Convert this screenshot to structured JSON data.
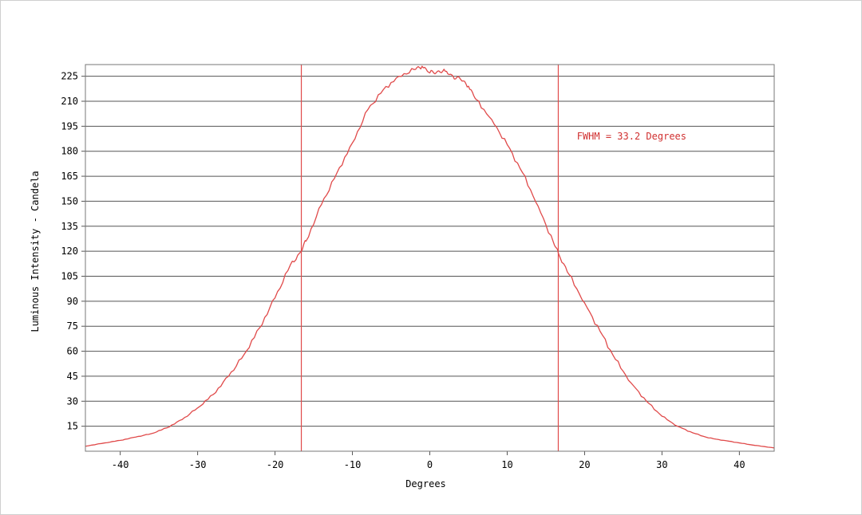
{
  "chart_data": {
    "type": "line",
    "title": "",
    "xlabel": "Degrees",
    "ylabel": "Luminous Intensity - Candela",
    "xlim": [
      -44.5,
      44.5
    ],
    "ylim": [
      0,
      232
    ],
    "xticks": [
      -40,
      -30,
      -20,
      -10,
      0,
      10,
      20,
      30,
      40
    ],
    "yticks": [
      15,
      30,
      45,
      60,
      75,
      90,
      105,
      120,
      135,
      150,
      165,
      180,
      195,
      210,
      225
    ],
    "grid": "horizontal",
    "line_color": "#e04a4a",
    "annotation_color": "#d03030",
    "series": [
      {
        "x": [
          -44.5,
          -42,
          -40,
          -38,
          -36,
          -34,
          -32,
          -30,
          -28,
          -26,
          -24,
          -22,
          -20,
          -18,
          -16.6,
          -16,
          -14,
          -12,
          -10,
          -8,
          -6,
          -4,
          -2,
          -1,
          0,
          1,
          2,
          3,
          4,
          5,
          6,
          8,
          10,
          12,
          14,
          16,
          16.6,
          18,
          20,
          22,
          24,
          26,
          28,
          30,
          32,
          34,
          36,
          38,
          40,
          42,
          44.5
        ],
        "y": [
          3,
          5,
          6.5,
          8.5,
          10.5,
          14,
          19,
          26,
          34,
          45,
          58,
          74,
          92,
          112,
          120,
          126,
          148,
          167,
          185,
          205,
          217,
          225,
          229,
          231,
          227,
          228,
          228,
          225,
          223,
          219,
          211,
          199,
          184,
          167,
          147,
          125,
          119,
          106,
          89,
          72,
          55,
          41,
          30,
          21,
          15,
          11,
          8,
          6.5,
          5,
          3.5,
          2
        ]
      }
    ],
    "reference_lines_x": [
      -16.6,
      16.6
    ],
    "annotations": [
      {
        "text": "FWHM = 33.2 Degrees",
        "x": 19,
        "y": 187
      }
    ]
  }
}
